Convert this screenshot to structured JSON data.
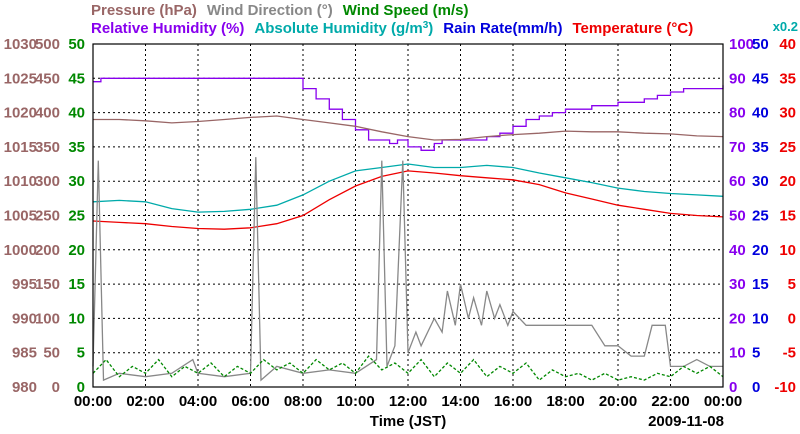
{
  "chart_data": {
    "type": "line",
    "date": "2009-11-08",
    "xlabel": "Time (JST)",
    "x_ticks": [
      "00:00",
      "02:00",
      "04:00",
      "06:00",
      "08:00",
      "10:00",
      "12:00",
      "14:00",
      "16:00",
      "18:00",
      "20:00",
      "22:00",
      "00:00"
    ],
    "xlim_hours": [
      0,
      24
    ],
    "grid": true,
    "legend_row1": [
      {
        "name": "Pressure (hPa)",
        "color": "#996666"
      },
      {
        "name": "Wind Direction (°)",
        "color": "#888888"
      },
      {
        "name": "Wind Speed (m/s)",
        "color": "#008800"
      }
    ],
    "legend_row2": [
      {
        "name": "Relative Humidity (%)",
        "color": "#8800ee"
      },
      {
        "name": "Absolute Humidity (g/m",
        "sup": "3",
        "tail": ")",
        "color": "#00aaaa"
      },
      {
        "name": "Rain Rate(mm/h)",
        "color": "#0000dd"
      },
      {
        "name": "Temperature (°C)",
        "color": "#ee0000"
      }
    ],
    "rain_scale_note": "x0.2",
    "axes": [
      {
        "name": "Pressure (hPa)",
        "side": "left",
        "color": "#996666",
        "min": 980,
        "max": 1030,
        "ticks": [
          "980",
          "985",
          "990",
          "995",
          "1000",
          "1005",
          "1010",
          "1015",
          "1020",
          "1025",
          "1030"
        ]
      },
      {
        "name": "Wind Direction (°)",
        "side": "left",
        "color": "#996666",
        "min": 0,
        "max": 500,
        "ticks": [
          "0",
          "50",
          "100",
          "150",
          "200",
          "250",
          "300",
          "350",
          "400",
          "450",
          "500"
        ]
      },
      {
        "name": "Wind Speed (m/s)",
        "side": "left",
        "color": "#008800",
        "min": 0,
        "max": 50,
        "ticks": [
          "0",
          "5",
          "10",
          "15",
          "20",
          "25",
          "30",
          "35",
          "40",
          "45",
          "50"
        ]
      },
      {
        "name": "Humidity (%)",
        "side": "right",
        "color": "#8800ee",
        "min": 0,
        "max": 100,
        "ticks": [
          "0",
          "10",
          "20",
          "30",
          "40",
          "50",
          "60",
          "70",
          "80",
          "90",
          "100"
        ]
      },
      {
        "name": "Rain Rate (mm/h)",
        "side": "right",
        "color": "#0000dd",
        "min": 0,
        "max": 50,
        "ticks": [
          "0",
          "5",
          "10",
          "15",
          "20",
          "25",
          "30",
          "35",
          "40",
          "45",
          "50"
        ]
      },
      {
        "name": "Temperature (°C)",
        "side": "right",
        "color": "#ee0000",
        "min": -10,
        "max": 40,
        "ticks": [
          "-10",
          "-5",
          "0",
          "5",
          "10",
          "15",
          "20",
          "25",
          "30",
          "35",
          "40"
        ]
      }
    ],
    "series": [
      {
        "name": "Relative Humidity (%)",
        "color": "#8800ee",
        "axis": 3,
        "step": true,
        "points": [
          [
            0,
            89
          ],
          [
            0.3,
            90
          ],
          [
            1.5,
            90
          ],
          [
            5.0,
            90
          ],
          [
            5.5,
            90
          ],
          [
            7.5,
            90
          ],
          [
            8.0,
            87
          ],
          [
            8.5,
            84
          ],
          [
            9.0,
            81
          ],
          [
            9.5,
            78
          ],
          [
            10.0,
            75
          ],
          [
            10.5,
            72
          ],
          [
            11.0,
            72
          ],
          [
            11.3,
            71
          ],
          [
            11.6,
            72
          ],
          [
            12.0,
            70
          ],
          [
            12.5,
            69
          ],
          [
            13.0,
            71
          ],
          [
            13.3,
            72
          ],
          [
            14.5,
            72
          ],
          [
            15.0,
            73
          ],
          [
            15.5,
            74
          ],
          [
            16.0,
            76
          ],
          [
            16.5,
            78
          ],
          [
            17.0,
            79
          ],
          [
            17.5,
            80
          ],
          [
            18.0,
            81
          ],
          [
            18.5,
            81
          ],
          [
            19.0,
            82
          ],
          [
            19.5,
            82
          ],
          [
            20.0,
            83
          ],
          [
            20.5,
            83
          ],
          [
            21.0,
            84
          ],
          [
            21.5,
            85
          ],
          [
            22.0,
            86
          ],
          [
            22.5,
            87
          ],
          [
            23.0,
            87
          ],
          [
            23.5,
            87
          ],
          [
            24.0,
            88
          ]
        ]
      },
      {
        "name": "Pressure (hPa)",
        "color": "#996666",
        "axis": 0,
        "points": [
          [
            0,
            1019.0
          ],
          [
            1,
            1019.0
          ],
          [
            2,
            1018.8
          ],
          [
            3,
            1018.5
          ],
          [
            4,
            1018.7
          ],
          [
            5,
            1019.0
          ],
          [
            6,
            1019.3
          ],
          [
            7,
            1019.5
          ],
          [
            8,
            1019.0
          ],
          [
            9,
            1018.5
          ],
          [
            10,
            1018.0
          ],
          [
            11,
            1017.2
          ],
          [
            12,
            1016.5
          ],
          [
            13,
            1016.0
          ],
          [
            14,
            1016.1
          ],
          [
            15,
            1016.5
          ],
          [
            16,
            1016.8
          ],
          [
            17,
            1017.0
          ],
          [
            18,
            1017.3
          ],
          [
            19,
            1017.2
          ],
          [
            20,
            1017.2
          ],
          [
            21,
            1017.0
          ],
          [
            22,
            1016.9
          ],
          [
            23,
            1016.6
          ],
          [
            24,
            1016.5
          ]
        ]
      },
      {
        "name": "Absolute Humidity (g/m3)",
        "color": "#00aaaa",
        "axis": 4,
        "points": [
          [
            0,
            27.0
          ],
          [
            1,
            27.2
          ],
          [
            2,
            27.0
          ],
          [
            3,
            26.0
          ],
          [
            4,
            25.5
          ],
          [
            5,
            25.6
          ],
          [
            6,
            25.9
          ],
          [
            7,
            26.5
          ],
          [
            8,
            28.0
          ],
          [
            9,
            30.0
          ],
          [
            10,
            31.5
          ],
          [
            11,
            32.0
          ],
          [
            12,
            32.5
          ],
          [
            13,
            32.0
          ],
          [
            14,
            32.0
          ],
          [
            15,
            32.3
          ],
          [
            16,
            32.0
          ],
          [
            17,
            31.2
          ],
          [
            18,
            30.5
          ],
          [
            19,
            29.8
          ],
          [
            20,
            29.0
          ],
          [
            21,
            28.5
          ],
          [
            22,
            28.2
          ],
          [
            23,
            28.0
          ],
          [
            24,
            27.8
          ]
        ]
      },
      {
        "name": "Temperature (°C)",
        "color": "#ee0000",
        "axis": 5,
        "points": [
          [
            0,
            14.2
          ],
          [
            1,
            14.0
          ],
          [
            2,
            13.8
          ],
          [
            3,
            13.4
          ],
          [
            4,
            13.1
          ],
          [
            5,
            13.0
          ],
          [
            6,
            13.2
          ],
          [
            7,
            13.8
          ],
          [
            8,
            15.0
          ],
          [
            9,
            17.3
          ],
          [
            10,
            19.3
          ],
          [
            11,
            20.7
          ],
          [
            12,
            21.5
          ],
          [
            13,
            21.2
          ],
          [
            14,
            20.8
          ],
          [
            15,
            20.5
          ],
          [
            16,
            20.2
          ],
          [
            17,
            19.5
          ],
          [
            18,
            18.3
          ],
          [
            19,
            17.4
          ],
          [
            20,
            16.5
          ],
          [
            21,
            15.9
          ],
          [
            22,
            15.3
          ],
          [
            23,
            15.0
          ],
          [
            24,
            14.8
          ]
        ]
      },
      {
        "name": "Wind Direction (°)",
        "color": "#888888",
        "axis": 1,
        "points": [
          [
            0,
            30
          ],
          [
            0.2,
            330
          ],
          [
            0.4,
            10
          ],
          [
            1,
            20
          ],
          [
            2,
            15
          ],
          [
            3,
            20
          ],
          [
            3.8,
            40
          ],
          [
            4,
            20
          ],
          [
            5,
            15
          ],
          [
            6,
            20
          ],
          [
            6.2,
            335
          ],
          [
            6.4,
            10
          ],
          [
            7,
            30
          ],
          [
            8,
            20
          ],
          [
            9,
            25
          ],
          [
            10,
            20
          ],
          [
            10.8,
            40
          ],
          [
            11.0,
            330
          ],
          [
            11.2,
            30
          ],
          [
            11.5,
            60
          ],
          [
            11.8,
            330
          ],
          [
            12.0,
            50
          ],
          [
            12.3,
            80
          ],
          [
            12.5,
            60
          ],
          [
            13.0,
            100
          ],
          [
            13.3,
            80
          ],
          [
            13.5,
            140
          ],
          [
            13.8,
            90
          ],
          [
            14.0,
            150
          ],
          [
            14.3,
            100
          ],
          [
            14.5,
            130
          ],
          [
            14.8,
            90
          ],
          [
            15.0,
            140
          ],
          [
            15.3,
            100
          ],
          [
            15.5,
            120
          ],
          [
            15.8,
            90
          ],
          [
            16.0,
            110
          ],
          [
            16.5,
            90
          ],
          [
            18,
            90
          ],
          [
            19.0,
            90
          ],
          [
            19.5,
            60
          ],
          [
            20.0,
            60
          ],
          [
            20.5,
            45
          ],
          [
            21.0,
            45
          ],
          [
            21.3,
            90
          ],
          [
            21.8,
            90
          ],
          [
            22.0,
            30
          ],
          [
            22.5,
            30
          ],
          [
            23.0,
            40
          ],
          [
            23.5,
            30
          ],
          [
            24.0,
            30
          ]
        ]
      },
      {
        "name": "Wind Speed (m/s)",
        "color": "#008800",
        "axis": 2,
        "dashed": true,
        "points": [
          [
            0,
            2.0
          ],
          [
            0.5,
            4.0
          ],
          [
            1,
            1.5
          ],
          [
            1.5,
            3.0
          ],
          [
            2,
            2.0
          ],
          [
            2.5,
            4.0
          ],
          [
            3,
            1.5
          ],
          [
            3.5,
            3.0
          ],
          [
            4,
            2.0
          ],
          [
            4.5,
            3.5
          ],
          [
            5,
            1.5
          ],
          [
            5.5,
            3.0
          ],
          [
            6,
            2.0
          ],
          [
            6.5,
            4.0
          ],
          [
            7,
            2.5
          ],
          [
            7.5,
            3.5
          ],
          [
            8,
            2.0
          ],
          [
            8.5,
            4.0
          ],
          [
            9,
            2.5
          ],
          [
            9.5,
            3.5
          ],
          [
            10,
            2.0
          ],
          [
            10.5,
            4.5
          ],
          [
            11,
            2.5
          ],
          [
            11.5,
            3.5
          ],
          [
            12,
            2.0
          ],
          [
            12.5,
            4.0
          ],
          [
            13,
            1.5
          ],
          [
            13.5,
            3.5
          ],
          [
            14,
            2.0
          ],
          [
            14.5,
            4.0
          ],
          [
            15,
            1.5
          ],
          [
            15.5,
            3.0
          ],
          [
            16,
            2.0
          ],
          [
            16.5,
            3.5
          ],
          [
            17,
            1.0
          ],
          [
            17.5,
            2.5
          ],
          [
            18,
            1.5
          ],
          [
            18.5,
            2.0
          ],
          [
            19,
            1.0
          ],
          [
            19.5,
            2.0
          ],
          [
            20,
            1.0
          ],
          [
            20.5,
            1.5
          ],
          [
            21,
            1.0
          ],
          [
            21.5,
            2.0
          ],
          [
            22,
            1.5
          ],
          [
            22.5,
            3.0
          ],
          [
            23,
            2.0
          ],
          [
            23.5,
            3.0
          ],
          [
            24,
            1.5
          ]
        ]
      }
    ]
  }
}
